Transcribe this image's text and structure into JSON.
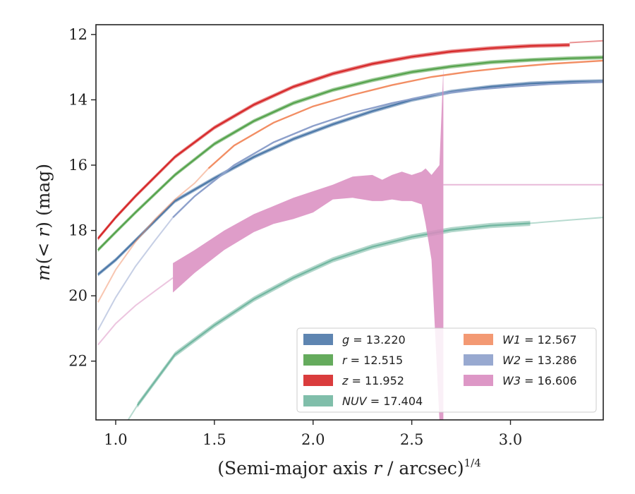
{
  "chart_data": {
    "type": "line",
    "title": "",
    "xlabel": "(Semi-major axis r / arcsec)^{1/4}",
    "xlabel_parts": {
      "prefix": "(Semi-major axis ",
      "var": "r",
      "middle": " / arcsec)",
      "sup": "1/4"
    },
    "ylabel": "m(< r) (mag)",
    "ylabel_parts": {
      "var": "m",
      "inner": "(< ",
      "var2": "r",
      "close": ")",
      "unit": " (mag)"
    },
    "xlim": [
      0.9,
      3.47
    ],
    "ylim": [
      23.8,
      11.7
    ],
    "y_inverted": true,
    "xticks": [
      "1.0",
      "1.5",
      "2.0",
      "2.5",
      "3.0"
    ],
    "xtick_values": [
      1.0,
      1.5,
      2.0,
      2.5,
      3.0
    ],
    "yticks": [
      "12",
      "14",
      "16",
      "18",
      "20",
      "22"
    ],
    "ytick_values": [
      12,
      14,
      16,
      18,
      20,
      22
    ],
    "grid": false,
    "legend_placement": "lower-right",
    "series": [
      {
        "name": "g = 13.220",
        "sym": "g",
        "val": "13.220",
        "color": "#4c78a8",
        "kind": "band",
        "half": 0.06,
        "x": [
          0.91,
          1.0,
          1.1,
          1.3,
          1.5,
          1.7,
          1.9,
          2.1,
          2.3,
          2.5,
          2.7,
          2.9,
          3.1,
          3.3,
          3.47
        ],
        "y": [
          19.35,
          18.9,
          18.3,
          17.1,
          16.4,
          15.75,
          15.2,
          14.75,
          14.35,
          14.0,
          13.75,
          13.6,
          13.5,
          13.45,
          13.43
        ]
      },
      {
        "name": "r = 12.515",
        "sym": "r",
        "val": "12.515",
        "color": "#54a24b",
        "kind": "band",
        "half": 0.06,
        "x": [
          0.91,
          1.0,
          1.1,
          1.3,
          1.5,
          1.7,
          1.9,
          2.1,
          2.3,
          2.5,
          2.7,
          2.9,
          3.1,
          3.3,
          3.47
        ],
        "y": [
          18.6,
          18.05,
          17.45,
          16.3,
          15.35,
          14.65,
          14.1,
          13.7,
          13.4,
          13.15,
          12.98,
          12.85,
          12.78,
          12.73,
          12.7
        ]
      },
      {
        "name": "z = 11.952",
        "sym": "z",
        "val": "11.952",
        "color": "#d62728",
        "kind": "band",
        "half": 0.06,
        "x": [
          0.91,
          1.0,
          1.1,
          1.3,
          1.5,
          1.7,
          1.9,
          2.1,
          2.3,
          2.5,
          2.7,
          2.9,
          3.1,
          3.3
        ],
        "y": [
          18.25,
          17.6,
          16.95,
          15.75,
          14.85,
          14.15,
          13.6,
          13.2,
          12.9,
          12.68,
          12.52,
          12.42,
          12.35,
          12.32
        ],
        "tail_x": [
          3.3,
          3.47
        ],
        "tail_y": [
          12.25,
          12.19
        ]
      },
      {
        "name": "NUV = 17.404",
        "sym": "NUV",
        "val": "17.404",
        "color": "#72b7a1",
        "kind": "band",
        "half": 0.08,
        "x": [
          1.11,
          1.3,
          1.5,
          1.7,
          1.9,
          2.1,
          2.3,
          2.5,
          2.7,
          2.9,
          3.1
        ],
        "y": [
          23.35,
          21.8,
          20.9,
          20.1,
          19.45,
          18.9,
          18.5,
          18.2,
          17.98,
          17.85,
          17.78
        ],
        "tail_x": [
          1.0,
          1.11,
          1.3,
          1.5,
          1.7,
          1.9,
          2.1,
          2.3,
          2.5,
          2.7,
          2.9,
          3.1,
          3.3,
          3.47
        ],
        "tail_y": [
          24.4,
          23.35,
          21.8,
          20.9,
          20.1,
          19.45,
          18.9,
          18.5,
          18.2,
          17.98,
          17.85,
          17.78,
          17.68,
          17.6
        ]
      },
      {
        "name": "W1 = 12.567",
        "sym": "W1",
        "val": "12.567",
        "color": "#f28e64",
        "kind": "line",
        "x": [
          1.47,
          1.6,
          1.8,
          2.0,
          2.2,
          2.4,
          2.6,
          2.8,
          3.0,
          3.2,
          3.47
        ],
        "y": [
          16.1,
          15.4,
          14.7,
          14.2,
          13.85,
          13.55,
          13.3,
          13.13,
          13.0,
          12.9,
          12.8
        ],
        "tail_x": [
          0.91,
          1.0,
          1.1,
          1.2,
          1.3,
          1.4,
          1.47
        ],
        "tail_y": [
          20.2,
          19.2,
          18.35,
          17.65,
          17.05,
          16.55,
          16.1
        ]
      },
      {
        "name": "W2 = 13.286",
        "sym": "W2",
        "val": "13.286",
        "color": "#8da0cb",
        "kind": "line",
        "x": [
          1.29,
          1.4,
          1.6,
          1.8,
          2.0,
          2.2,
          2.4,
          2.6,
          2.8,
          3.0,
          3.2,
          3.47
        ],
        "y": [
          17.6,
          16.95,
          16.0,
          15.3,
          14.8,
          14.4,
          14.1,
          13.85,
          13.7,
          13.6,
          13.52,
          13.45
        ],
        "tail_x": [
          0.91,
          1.0,
          1.1,
          1.2,
          1.29
        ],
        "tail_y": [
          21.05,
          20.05,
          19.1,
          18.3,
          17.6
        ]
      },
      {
        "name": "W3 = 16.606",
        "sym": "W3",
        "val": "16.606",
        "color": "#d98cc0",
        "kind": "w3",
        "band_x": [
          1.29,
          1.4,
          1.55,
          1.7,
          1.8,
          1.9,
          2.0,
          2.1,
          2.2,
          2.3,
          2.35,
          2.4,
          2.45,
          2.5,
          2.55,
          2.57,
          2.6,
          2.64,
          2.66
        ],
        "band_lo": [
          19.9,
          19.3,
          18.6,
          18.05,
          17.8,
          17.65,
          17.45,
          17.05,
          17.0,
          17.1,
          17.1,
          17.05,
          17.1,
          17.1,
          17.2,
          17.8,
          18.9,
          23.8,
          23.8
        ],
        "band_hi": [
          19.0,
          18.6,
          18.0,
          17.5,
          17.25,
          17.0,
          16.8,
          16.6,
          16.35,
          16.3,
          16.45,
          16.3,
          16.2,
          16.3,
          16.2,
          16.1,
          16.3,
          16.0,
          13.0
        ],
        "tail_x": [
          0.91,
          1.0,
          1.1,
          1.2,
          1.29
        ],
        "tail_y": [
          21.5,
          20.85,
          20.3,
          19.85,
          19.45
        ],
        "flat_x": [
          2.66,
          3.47
        ],
        "flat_y": 16.6
      }
    ]
  }
}
